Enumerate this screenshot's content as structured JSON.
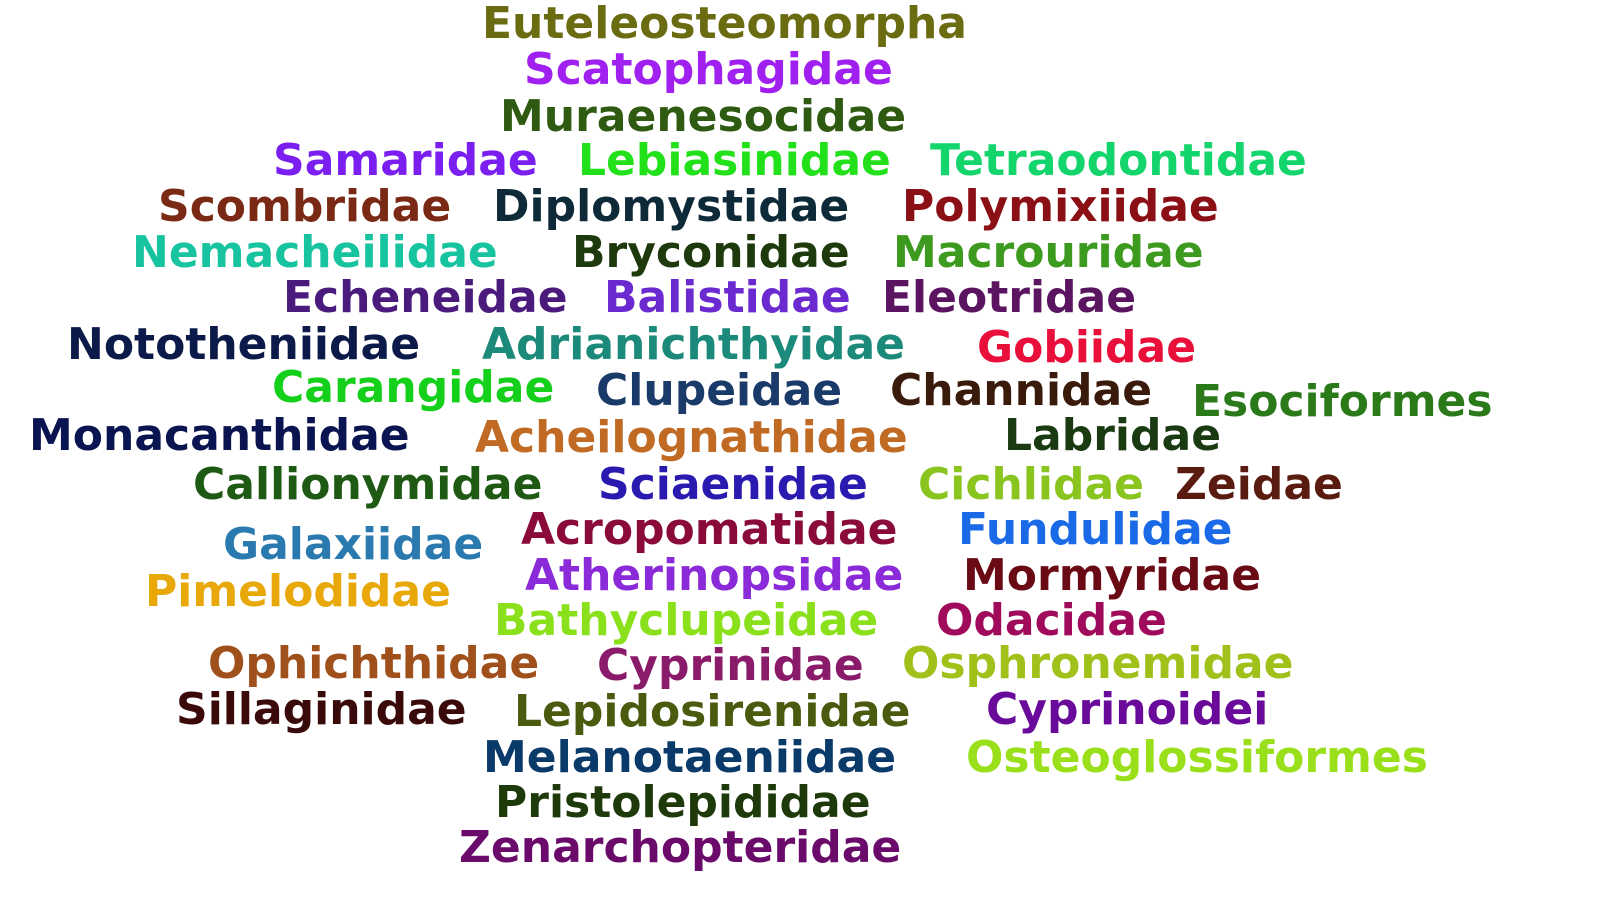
{
  "words": [
    {
      "text": "Euteleosteomorpha",
      "color": "#6b6b12"
    },
    {
      "text": "Scatophagidae",
      "color": "#a020f0"
    },
    {
      "text": "Muraenesocidae",
      "color": "#2e5a12"
    },
    {
      "text": "Samaridae",
      "color": "#7b1ff0"
    },
    {
      "text": "Lebiasinidae",
      "color": "#22e01a"
    },
    {
      "text": "Tetraodontidae",
      "color": "#14d46c"
    },
    {
      "text": "Scombridae",
      "color": "#7a2a14"
    },
    {
      "text": "Diplomystidae",
      "color": "#0e2a38"
    },
    {
      "text": "Polymixiidae",
      "color": "#8a1016"
    },
    {
      "text": "Nemacheilidae",
      "color": "#18c4a0"
    },
    {
      "text": "Bryconidae",
      "color": "#1e3a0c"
    },
    {
      "text": "Macrouridae",
      "color": "#3c9a1e"
    },
    {
      "text": "Echeneidae",
      "color": "#4a1a7c"
    },
    {
      "text": "Balistidae",
      "color": "#6a2ad0"
    },
    {
      "text": "Eleotridae",
      "color": "#5a1460"
    },
    {
      "text": "Nototheniidae",
      "color": "#0c1a4a"
    },
    {
      "text": "Adrianichthyidae",
      "color": "#1c8a7a"
    },
    {
      "text": "Gobiidae",
      "color": "#e8103a"
    },
    {
      "text": "Carangidae",
      "color": "#14d01a"
    },
    {
      "text": "Clupeidae",
      "color": "#1a3a6a"
    },
    {
      "text": "Channidae",
      "color": "#3a1a0a"
    },
    {
      "text": "Esociformes",
      "color": "#2a7a1a"
    },
    {
      "text": "Monacanthidae",
      "color": "#0a1450"
    },
    {
      "text": "Acheilognathidae",
      "color": "#c06a24"
    },
    {
      "text": "Labridae",
      "color": "#1a3a12"
    },
    {
      "text": "Callionymidae",
      "color": "#1e5a14"
    },
    {
      "text": "Sciaenidae",
      "color": "#2a1ab0"
    },
    {
      "text": "Cichlidae",
      "color": "#8ac41e"
    },
    {
      "text": "Zeidae",
      "color": "#5a1c10"
    },
    {
      "text": "Galaxiidae",
      "color": "#2a7ab0"
    },
    {
      "text": "Acropomatidae",
      "color": "#8a0a3a"
    },
    {
      "text": "Fundulidae",
      "color": "#1a6ae8"
    },
    {
      "text": "Pimelodidae",
      "color": "#e8a80a"
    },
    {
      "text": "Atherinopsidae",
      "color": "#8a2ad8"
    },
    {
      "text": "Mormyridae",
      "color": "#6a0a14"
    },
    {
      "text": "Bathyclupeidae",
      "color": "#8ae01a"
    },
    {
      "text": "Odacidae",
      "color": "#a00a5a"
    },
    {
      "text": "Ophichthidae",
      "color": "#a0501a"
    },
    {
      "text": "Cyprinidae",
      "color": "#8a1a6a"
    },
    {
      "text": "Osphronemidae",
      "color": "#a0c01a"
    },
    {
      "text": "Sillaginidae",
      "color": "#3a0a0a"
    },
    {
      "text": "Lepidosirenidae",
      "color": "#4a5a0e"
    },
    {
      "text": "Cyprinoidei",
      "color": "#6a0a9a"
    },
    {
      "text": "Melanotaeniidae",
      "color": "#0a3a6a"
    },
    {
      "text": "Osteoglossiformes",
      "color": "#9ae01a"
    },
    {
      "text": "Pristolepididae",
      "color": "#1e3a0a"
    },
    {
      "text": "Zenarchopteridae",
      "color": "#6a0a6a"
    }
  ]
}
